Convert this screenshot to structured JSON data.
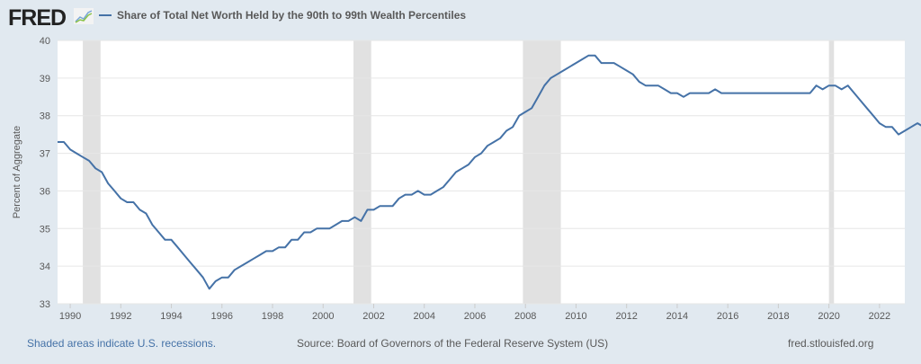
{
  "logo_text": "FRED",
  "chart_data": {
    "type": "line",
    "title": "Share of Total Net Worth Held by the 90th to 99th Wealth Percentiles",
    "xlabel": "",
    "ylabel": "Percent of Aggregate",
    "ylim": [
      33,
      40
    ],
    "xlim": [
      1989.5,
      2023.0
    ],
    "yticks": [
      "33",
      "34",
      "35",
      "36",
      "37",
      "38",
      "39",
      "40"
    ],
    "xticks": [
      "1990",
      "1992",
      "1994",
      "1996",
      "1998",
      "2000",
      "2002",
      "2004",
      "2006",
      "2008",
      "2010",
      "2012",
      "2014",
      "2016",
      "2018",
      "2020",
      "2022"
    ],
    "grid": true,
    "legend": "top-left",
    "line_color": "#4572a7",
    "recession_color": "#e1e1e1",
    "recessions": [
      [
        1990.5,
        1991.2
      ],
      [
        2001.2,
        2001.9
      ],
      [
        2007.9,
        2009.4
      ],
      [
        2020.0,
        2020.2
      ]
    ],
    "series": [
      {
        "name": "Share of Total Net Worth Held by the 90th to 99th Wealth Percentiles",
        "start": 1989.5,
        "step": 0.25,
        "values": [
          37.3,
          37.3,
          37.1,
          37.0,
          36.9,
          36.8,
          36.6,
          36.5,
          36.2,
          36.0,
          35.8,
          35.7,
          35.7,
          35.5,
          35.4,
          35.1,
          34.9,
          34.7,
          34.7,
          34.5,
          34.3,
          34.1,
          33.9,
          33.7,
          33.4,
          33.6,
          33.7,
          33.7,
          33.9,
          34.0,
          34.1,
          34.2,
          34.3,
          34.4,
          34.4,
          34.5,
          34.5,
          34.7,
          34.7,
          34.9,
          34.9,
          35.0,
          35.0,
          35.0,
          35.1,
          35.2,
          35.2,
          35.3,
          35.2,
          35.5,
          35.5,
          35.6,
          35.6,
          35.6,
          35.8,
          35.9,
          35.9,
          36.0,
          35.9,
          35.9,
          36.0,
          36.1,
          36.3,
          36.5,
          36.6,
          36.7,
          36.9,
          37.0,
          37.2,
          37.3,
          37.4,
          37.6,
          37.7,
          38.0,
          38.1,
          38.2,
          38.5,
          38.8,
          39.0,
          39.1,
          39.2,
          39.3,
          39.4,
          39.5,
          39.6,
          39.6,
          39.4,
          39.4,
          39.4,
          39.3,
          39.2,
          39.1,
          38.9,
          38.8,
          38.8,
          38.8,
          38.7,
          38.6,
          38.6,
          38.5,
          38.6,
          38.6,
          38.6,
          38.6,
          38.7,
          38.6,
          38.6,
          38.6,
          38.6,
          38.6,
          38.6,
          38.6,
          38.6,
          38.6,
          38.6,
          38.6,
          38.6,
          38.6,
          38.6,
          38.6,
          38.8,
          38.7,
          38.8,
          38.8,
          38.7,
          38.8,
          38.6,
          38.4,
          38.2,
          38.0,
          37.8,
          37.7,
          37.7,
          37.5,
          37.6,
          37.7,
          37.8,
          37.7
        ]
      }
    ]
  },
  "footer": {
    "recession_note": "Shaded areas indicate U.S. recessions.",
    "source": "Source: Board of Governors of the Federal Reserve System (US)",
    "site": "fred.stlouisfed.org"
  }
}
